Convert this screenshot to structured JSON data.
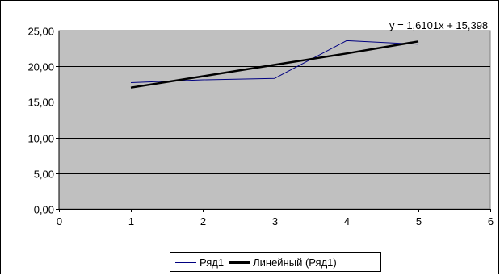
{
  "chart_data": {
    "type": "line",
    "x": [
      1,
      2,
      3,
      4,
      5
    ],
    "series": [
      {
        "name": "Ряд1",
        "values": [
          17.7,
          18.1,
          18.3,
          23.6,
          23.1
        ],
        "color": "#000080"
      },
      {
        "name": "Линейный (Ряд1)",
        "values": [
          17.0,
          18.6,
          20.2,
          21.8,
          23.5
        ],
        "color": "#000000",
        "trendline": true
      }
    ],
    "xlim": [
      0,
      6
    ],
    "ylim": [
      0,
      25
    ],
    "x_ticks": [
      "0",
      "1",
      "2",
      "3",
      "4",
      "5",
      "6"
    ],
    "y_ticks": [
      "0,00",
      "5,00",
      "10,00",
      "15,00",
      "20,00",
      "25,00"
    ],
    "trendline_equation": "y = 1,6101x + 15,398",
    "plot_background": "#c0c0c0",
    "grid": true,
    "legend_position": "bottom"
  }
}
